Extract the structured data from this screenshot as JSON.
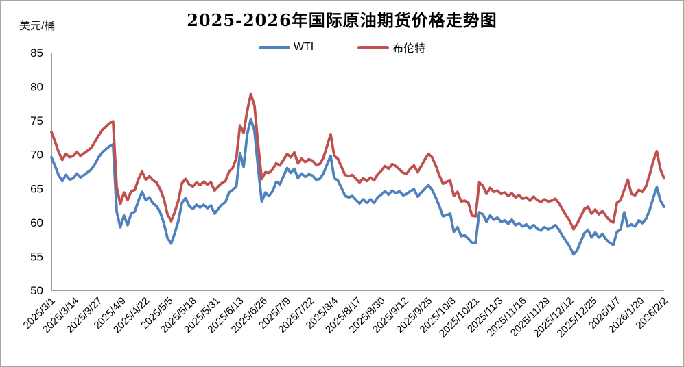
{
  "header": {
    "title": "2025-2026年国际原油期货价格走势图",
    "y_axis_unit": "美元/桶"
  },
  "legend": {
    "items": [
      {
        "label": "WTI",
        "color": "#4F81BD"
      },
      {
        "label": "布伦特",
        "color": "#C0504D"
      }
    ]
  },
  "colors": {
    "axis": "#9c9c9c",
    "tick_text": "#000000",
    "background": "#ffffff",
    "wti_blue": "#4F81BD",
    "brent_red": "#C0504D"
  },
  "chart_data": {
    "type": "line",
    "title": "2025-2026年国际原油期货价格走势图",
    "xlabel": "",
    "ylabel": "美元/桶",
    "ylim": [
      50,
      85
    ],
    "ytick_step": 5,
    "grid": false,
    "legend_position": "top",
    "x_tick_labels": [
      "2025/3/1",
      "2025/3/14",
      "2025/3/27",
      "2025/4/9",
      "2025/4/22",
      "2025/5/5",
      "2025/5/18",
      "2025/5/31",
      "2025/6/13",
      "2025/6/26",
      "2025/7/9",
      "2025/7/22",
      "2025/8/4",
      "2025/8/17",
      "2025/8/30",
      "2025/9/12",
      "2025/9/25",
      "2025/10/8",
      "2025/10/21",
      "2025/11/3",
      "2025/11/16",
      "2025/11/29",
      "2025/12/12",
      "2025/12/25",
      "2026/1/7",
      "2026/1/20",
      "2026/2/2"
    ],
    "tick_interval_days": 13,
    "start_date": "2025/3/1",
    "end_date": "2026/2/2",
    "day_step": 2,
    "series": [
      {
        "name": "WTI",
        "color": "#4F81BD",
        "values": [
          69.6,
          68.3,
          66.9,
          66.1,
          67.0,
          66.3,
          66.5,
          67.2,
          66.6,
          67.0,
          67.4,
          67.8,
          68.6,
          69.6,
          70.3,
          70.8,
          71.2,
          71.5,
          61.6,
          59.3,
          61.0,
          59.6,
          61.3,
          61.6,
          63.2,
          64.5,
          63.3,
          63.7,
          62.8,
          62.4,
          61.5,
          59.9,
          57.7,
          56.9,
          58.4,
          60.2,
          62.9,
          63.6,
          62.4,
          62.0,
          62.6,
          62.2,
          62.6,
          62.1,
          62.5,
          61.3,
          62.0,
          62.6,
          63.0,
          64.4,
          64.8,
          65.3,
          70.2,
          68.2,
          73.0,
          75.2,
          73.5,
          68.0,
          63.1,
          64.4,
          63.9,
          64.6,
          66.0,
          65.6,
          66.8,
          68.0,
          67.3,
          67.9,
          66.5,
          67.2,
          66.7,
          67.1,
          66.9,
          66.3,
          66.4,
          67.2,
          68.5,
          69.8,
          66.5,
          66.2,
          65.1,
          63.9,
          63.7,
          63.9,
          63.3,
          62.8,
          63.4,
          62.9,
          63.4,
          62.9,
          63.7,
          64.1,
          64.6,
          64.1,
          64.7,
          64.3,
          64.6,
          64.0,
          64.2,
          64.6,
          64.9,
          63.8,
          64.4,
          65.0,
          65.5,
          64.8,
          63.7,
          62.4,
          60.9,
          61.1,
          61.3,
          58.6,
          59.3,
          58.0,
          58.1,
          57.6,
          57.0,
          57.0,
          61.5,
          61.2,
          60.1,
          61.0,
          60.4,
          60.7,
          60.1,
          60.3,
          59.8,
          60.4,
          59.6,
          59.9,
          59.4,
          59.7,
          59.1,
          59.6,
          59.1,
          58.8,
          59.3,
          59.0,
          59.2,
          59.6,
          58.9,
          58.0,
          57.2,
          56.4,
          55.3,
          55.9,
          57.2,
          58.4,
          58.9,
          57.8,
          58.5,
          57.8,
          58.3,
          57.5,
          57.0,
          56.7,
          58.6,
          59.0,
          61.5,
          59.4,
          59.7,
          59.4,
          60.3,
          59.9,
          60.5,
          61.8,
          63.6,
          65.2,
          63.2,
          62.3
        ]
      },
      {
        "name": "布伦特",
        "color": "#C0504D",
        "values": [
          73.3,
          71.9,
          70.3,
          69.2,
          70.1,
          69.6,
          69.8,
          70.4,
          69.8,
          70.2,
          70.6,
          71.0,
          71.9,
          72.8,
          73.6,
          74.1,
          74.6,
          74.9,
          65.2,
          62.7,
          64.4,
          63.3,
          64.6,
          64.8,
          66.4,
          67.5,
          66.3,
          66.8,
          66.2,
          65.9,
          64.9,
          63.5,
          61.2,
          60.2,
          61.5,
          63.2,
          65.8,
          66.4,
          65.6,
          65.3,
          65.9,
          65.5,
          66.0,
          65.6,
          65.9,
          64.7,
          65.3,
          65.8,
          66.1,
          67.5,
          68.0,
          69.5,
          74.3,
          73.2,
          76.4,
          78.9,
          77.2,
          71.5,
          66.4,
          67.4,
          67.3,
          67.8,
          68.7,
          68.4,
          69.2,
          70.1,
          69.6,
          70.3,
          68.7,
          69.4,
          68.9,
          69.3,
          69.1,
          68.5,
          68.6,
          69.5,
          71.2,
          73.0,
          69.8,
          69.4,
          68.2,
          67.0,
          66.8,
          67.0,
          66.4,
          65.9,
          66.5,
          66.1,
          66.6,
          66.2,
          67.1,
          67.6,
          68.3,
          67.9,
          68.6,
          68.3,
          67.8,
          67.3,
          67.2,
          67.9,
          68.4,
          67.4,
          68.3,
          69.3,
          70.1,
          69.6,
          68.4,
          66.9,
          65.7,
          66.0,
          66.2,
          63.9,
          64.5,
          63.1,
          63.2,
          62.9,
          61.0,
          60.9,
          65.9,
          65.4,
          64.2,
          65.1,
          64.5,
          64.7,
          64.2,
          64.4,
          63.9,
          64.3,
          63.7,
          64.0,
          63.5,
          63.7,
          63.2,
          63.8,
          63.3,
          63.0,
          63.4,
          63.1,
          63.2,
          63.5,
          62.8,
          61.9,
          61.0,
          60.2,
          59.0,
          59.8,
          60.9,
          62.0,
          62.3,
          61.3,
          61.9,
          61.2,
          61.7,
          60.9,
          60.3,
          60.0,
          62.9,
          63.3,
          64.8,
          66.3,
          64.2,
          64.0,
          64.8,
          64.5,
          65.3,
          67.0,
          69.0,
          70.5,
          67.8,
          66.5
        ]
      }
    ]
  }
}
